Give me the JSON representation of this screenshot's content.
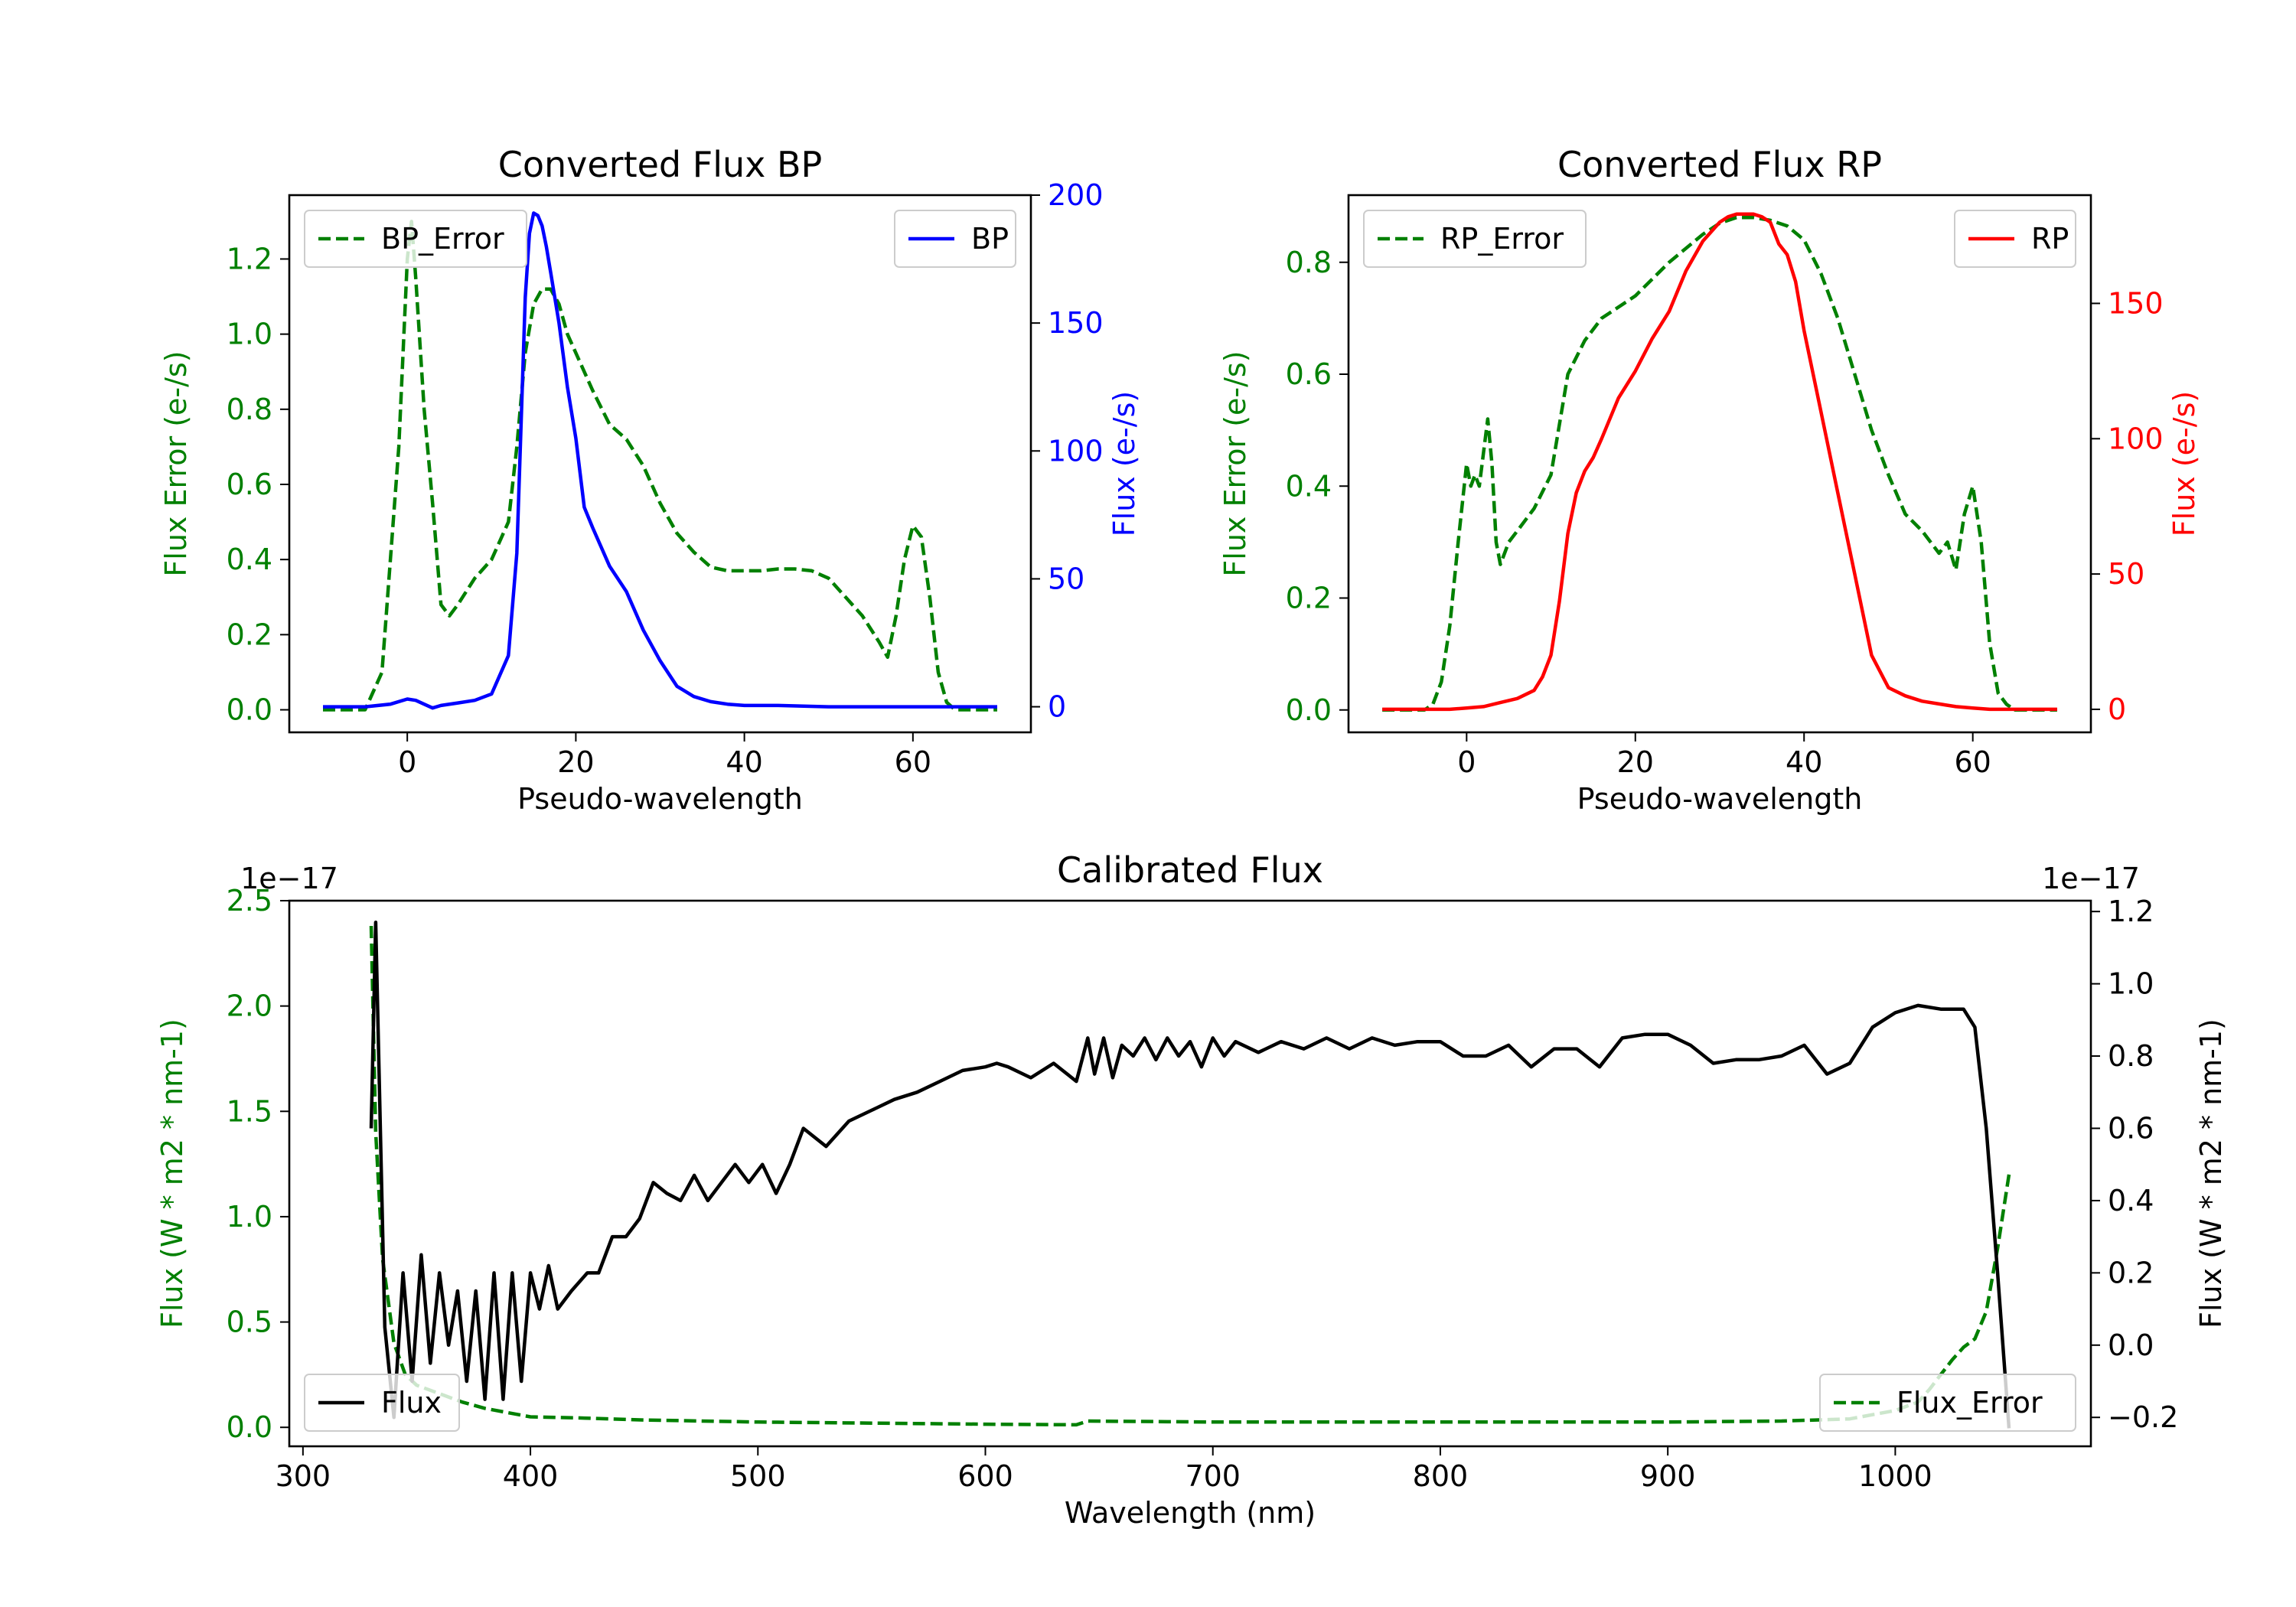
{
  "chart_data": [
    {
      "id": "bp",
      "type": "line",
      "title": "Converted Flux BP",
      "xlabel": "Pseudo-wavelength",
      "xlim": [
        -14,
        74
      ],
      "xticks": [
        0,
        20,
        40,
        60
      ],
      "left_axis": {
        "label": "Flux Error (e-/s)",
        "color": "#008000",
        "ylim": [
          -0.06,
          1.37
        ],
        "ticks": [
          0.0,
          0.2,
          0.4,
          0.6,
          0.8,
          1.0,
          1.2
        ],
        "tick_labels": [
          "0.0",
          "0.2",
          "0.4",
          "0.6",
          "0.8",
          "1.0",
          "1.2"
        ]
      },
      "right_axis": {
        "label": "Flux (e-/s)",
        "color": "#0000ff",
        "ylim": [
          -10,
          200
        ],
        "ticks": [
          0,
          50,
          100,
          150,
          200
        ],
        "tick_labels": [
          "0",
          "50",
          "100",
          "150",
          "200"
        ]
      },
      "series": [
        {
          "name": "BP_Error",
          "axis": "left",
          "color": "#008000",
          "dash": true,
          "x": [
            -10,
            -5,
            -3,
            -1,
            0,
            0.5,
            1,
            2,
            3,
            4,
            5,
            6,
            8,
            10,
            12,
            13,
            14,
            15,
            16,
            17,
            18,
            19,
            20,
            22,
            24,
            26,
            28,
            30,
            32,
            34,
            36,
            38,
            40,
            42,
            44,
            46,
            48,
            50,
            52,
            54,
            56,
            57,
            58,
            59,
            60,
            61,
            62,
            63,
            64,
            65,
            70
          ],
          "y": [
            0,
            0,
            0.1,
            0.7,
            1.2,
            1.3,
            1.15,
            0.8,
            0.55,
            0.28,
            0.25,
            0.28,
            0.35,
            0.4,
            0.5,
            0.7,
            0.95,
            1.08,
            1.12,
            1.12,
            1.08,
            1.0,
            0.95,
            0.85,
            0.76,
            0.72,
            0.65,
            0.55,
            0.47,
            0.42,
            0.38,
            0.37,
            0.37,
            0.37,
            0.375,
            0.375,
            0.37,
            0.35,
            0.3,
            0.25,
            0.18,
            0.14,
            0.25,
            0.4,
            0.49,
            0.46,
            0.3,
            0.1,
            0.02,
            0,
            0
          ]
        },
        {
          "name": "BP",
          "axis": "right",
          "color": "#0000ff",
          "dash": false,
          "x": [
            -10,
            -5,
            -2,
            0,
            1,
            2,
            3,
            4,
            6,
            8,
            10,
            12,
            13,
            13.5,
            14,
            14.5,
            15,
            15.5,
            16,
            16.5,
            17,
            18,
            19,
            20,
            21,
            22,
            24,
            26,
            28,
            30,
            32,
            34,
            36,
            38,
            40,
            44,
            50,
            60,
            70
          ],
          "y": [
            0,
            0,
            1,
            3,
            2.5,
            1,
            -0.5,
            0.5,
            1.5,
            2.5,
            5,
            20,
            60,
            110,
            160,
            185,
            193,
            192,
            188,
            180,
            170,
            150,
            125,
            105,
            78,
            70,
            55,
            45,
            30,
            18,
            8,
            4,
            2,
            1,
            0.5,
            0.5,
            0,
            0,
            0
          ]
        }
      ],
      "legends": [
        {
          "entries": [
            "BP_Error"
          ],
          "placement": "upper-left"
        },
        {
          "entries": [
            "BP"
          ],
          "placement": "upper-right"
        }
      ]
    },
    {
      "id": "rp",
      "type": "line",
      "title": "Converted Flux RP",
      "xlabel": "Pseudo-wavelength",
      "xlim": [
        -14,
        74
      ],
      "xticks": [
        0,
        20,
        40,
        60
      ],
      "left_axis": {
        "label": "Flux Error (e-/s)",
        "color": "#008000",
        "ylim": [
          -0.04,
          0.92
        ],
        "ticks": [
          0.0,
          0.2,
          0.4,
          0.6,
          0.8
        ],
        "tick_labels": [
          "0.0",
          "0.2",
          "0.4",
          "0.6",
          "0.8"
        ]
      },
      "right_axis": {
        "label": "Flux (e-/s)",
        "color": "#ff0000",
        "ylim": [
          -8.5,
          190
        ],
        "ticks": [
          0,
          50,
          100,
          150
        ],
        "tick_labels": [
          "0",
          "50",
          "100",
          "150"
        ]
      },
      "series": [
        {
          "name": "RP_Error",
          "axis": "left",
          "color": "#008000",
          "dash": true,
          "x": [
            -10,
            -5,
            -4,
            -3,
            -2,
            -1,
            0,
            0.5,
            1,
            1.5,
            2,
            2.5,
            3,
            3.5,
            4,
            5,
            6,
            8,
            10,
            12,
            14,
            16,
            20,
            24,
            28,
            30,
            32,
            34,
            36,
            38,
            40,
            42,
            44,
            46,
            48,
            50,
            52,
            54,
            56,
            57,
            58,
            59,
            60,
            61,
            62,
            63,
            64,
            65,
            70
          ],
          "y": [
            0,
            0,
            0.01,
            0.05,
            0.15,
            0.3,
            0.44,
            0.4,
            0.42,
            0.4,
            0.46,
            0.52,
            0.44,
            0.3,
            0.26,
            0.3,
            0.32,
            0.36,
            0.42,
            0.6,
            0.66,
            0.7,
            0.74,
            0.8,
            0.85,
            0.87,
            0.88,
            0.88,
            0.875,
            0.865,
            0.84,
            0.78,
            0.7,
            0.6,
            0.5,
            0.42,
            0.35,
            0.32,
            0.28,
            0.3,
            0.25,
            0.35,
            0.4,
            0.3,
            0.12,
            0.03,
            0.01,
            0,
            0
          ]
        },
        {
          "name": "RP",
          "axis": "right",
          "color": "#ff0000",
          "dash": false,
          "x": [
            -10,
            -2,
            0,
            2,
            4,
            6,
            8,
            9,
            10,
            11,
            12,
            13,
            14,
            15,
            16,
            18,
            20,
            22,
            24,
            26,
            28,
            30,
            31,
            32,
            33,
            34,
            35,
            36,
            37,
            38,
            39,
            40,
            42,
            44,
            46,
            48,
            50,
            52,
            54,
            56,
            58,
            60,
            62,
            65,
            70
          ],
          "y": [
            0,
            0,
            0.5,
            1,
            2.5,
            4,
            7,
            12,
            20,
            40,
            65,
            80,
            88,
            93,
            100,
            115,
            125,
            137,
            147,
            162,
            173,
            180,
            182,
            183,
            183,
            183,
            182,
            180,
            172,
            168,
            158,
            140,
            110,
            80,
            50,
            20,
            8,
            5,
            3,
            2,
            1,
            0.5,
            0,
            0,
            0
          ]
        }
      ],
      "legends": [
        {
          "entries": [
            "RP_Error"
          ],
          "placement": "upper-left"
        },
        {
          "entries": [
            "RP"
          ],
          "placement": "upper-right"
        }
      ]
    },
    {
      "id": "cal",
      "type": "line",
      "title": "Calibrated Flux",
      "xlabel": "Wavelength (nm)",
      "xlim": [
        294,
        1086
      ],
      "xticks": [
        300,
        400,
        500,
        600,
        700,
        800,
        900,
        1000
      ],
      "left_axis": {
        "label": "Flux (W * m2 * nm-1)",
        "color": "#008000",
        "offset_text": "1e−17",
        "ylim": [
          -0.09,
          2.5
        ],
        "ticks": [
          0.0,
          0.5,
          1.0,
          1.5,
          2.0,
          2.5
        ],
        "tick_labels": [
          "0.0",
          "0.5",
          "1.0",
          "1.5",
          "2.0",
          "2.5"
        ]
      },
      "right_axis": {
        "label": "Flux (W * m2 * nm-1)",
        "color": "#000000",
        "offset_text": "1e−17",
        "ylim": [
          -0.28,
          1.23
        ],
        "ticks": [
          -0.2,
          0.0,
          0.2,
          0.4,
          0.6,
          0.8,
          1.0,
          1.2
        ],
        "tick_labels": [
          "−0.2",
          "0.0",
          "0.2",
          "0.4",
          "0.6",
          "0.8",
          "1.0",
          "1.2"
        ]
      },
      "series": [
        {
          "name": "Flux_Error",
          "axis": "left",
          "color": "#008000",
          "dash": true,
          "x": [
            330,
            332,
            335,
            340,
            345,
            350,
            355,
            360,
            370,
            380,
            390,
            400,
            420,
            450,
            500,
            600,
            640,
            645,
            700,
            800,
            900,
            950,
            980,
            1000,
            1010,
            1015,
            1020,
            1025,
            1030,
            1035,
            1040,
            1045,
            1050
          ],
          "y": [
            2.38,
            1.4,
            0.8,
            0.4,
            0.25,
            0.2,
            0.18,
            0.16,
            0.12,
            0.09,
            0.07,
            0.05,
            0.045,
            0.035,
            0.025,
            0.015,
            0.012,
            0.03,
            0.025,
            0.025,
            0.025,
            0.03,
            0.04,
            0.08,
            0.12,
            0.18,
            0.25,
            0.32,
            0.38,
            0.42,
            0.55,
            0.85,
            1.2
          ]
        },
        {
          "name": "Flux",
          "axis": "right",
          "color": "#000000",
          "dash": false,
          "x": [
            330,
            332,
            336,
            340,
            344,
            348,
            352,
            356,
            360,
            364,
            368,
            372,
            376,
            380,
            384,
            388,
            392,
            396,
            400,
            404,
            408,
            412,
            418,
            425,
            430,
            436,
            442,
            448,
            454,
            460,
            466,
            472,
            478,
            484,
            490,
            496,
            502,
            508,
            514,
            520,
            530,
            540,
            550,
            560,
            570,
            580,
            590,
            600,
            605,
            610,
            620,
            630,
            640,
            645,
            648,
            652,
            656,
            660,
            665,
            670,
            675,
            680,
            685,
            690,
            695,
            700,
            705,
            710,
            720,
            730,
            740,
            750,
            760,
            770,
            780,
            790,
            800,
            810,
            820,
            830,
            840,
            850,
            860,
            870,
            880,
            890,
            900,
            910,
            920,
            930,
            940,
            950,
            960,
            970,
            980,
            985,
            990,
            1000,
            1010,
            1020,
            1030,
            1035,
            1040,
            1045,
            1050
          ],
          "y": [
            0.6,
            1.17,
            0.05,
            -0.2,
            0.2,
            -0.1,
            0.25,
            -0.05,
            0.2,
            0.0,
            0.15,
            -0.1,
            0.15,
            -0.15,
            0.2,
            -0.15,
            0.2,
            -0.1,
            0.2,
            0.1,
            0.22,
            0.1,
            0.15,
            0.2,
            0.2,
            0.3,
            0.3,
            0.35,
            0.45,
            0.42,
            0.4,
            0.47,
            0.4,
            0.45,
            0.5,
            0.45,
            0.5,
            0.42,
            0.5,
            0.6,
            0.55,
            0.62,
            0.65,
            0.68,
            0.7,
            0.73,
            0.76,
            0.77,
            0.78,
            0.77,
            0.74,
            0.78,
            0.73,
            0.85,
            0.75,
            0.85,
            0.74,
            0.83,
            0.8,
            0.85,
            0.79,
            0.85,
            0.8,
            0.84,
            0.77,
            0.85,
            0.8,
            0.84,
            0.81,
            0.84,
            0.82,
            0.85,
            0.82,
            0.85,
            0.83,
            0.84,
            0.84,
            0.8,
            0.8,
            0.83,
            0.77,
            0.82,
            0.82,
            0.77,
            0.85,
            0.86,
            0.86,
            0.83,
            0.78,
            0.79,
            0.79,
            0.8,
            0.83,
            0.75,
            0.78,
            0.83,
            0.88,
            0.92,
            0.94,
            0.93,
            0.93,
            0.88,
            0.6,
            0.2,
            -0.23
          ]
        }
      ],
      "legends": [
        {
          "entries": [
            "Flux"
          ],
          "placement": "lower-left"
        },
        {
          "entries": [
            "Flux_Error"
          ],
          "placement": "lower-right"
        }
      ]
    }
  ]
}
